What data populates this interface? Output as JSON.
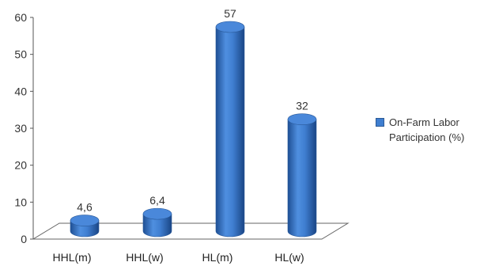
{
  "chart_data": {
    "type": "bar",
    "style": "3d-cylinder",
    "categories": [
      "HHL(m)",
      "HHL(w)",
      "HL(m)",
      "HL(w)"
    ],
    "series": [
      {
        "name": "On-Farm Labor Participation (%)",
        "values": [
          4.6,
          6.4,
          57,
          32
        ],
        "color": "#3f7ed0"
      }
    ],
    "data_labels": [
      "4,6",
      "6,4",
      "57",
      "32"
    ],
    "y_ticks": [
      "0",
      "10",
      "20",
      "30",
      "40",
      "50",
      "60"
    ],
    "ylim": [
      0,
      60
    ],
    "grid": false,
    "legend_position": "right"
  }
}
